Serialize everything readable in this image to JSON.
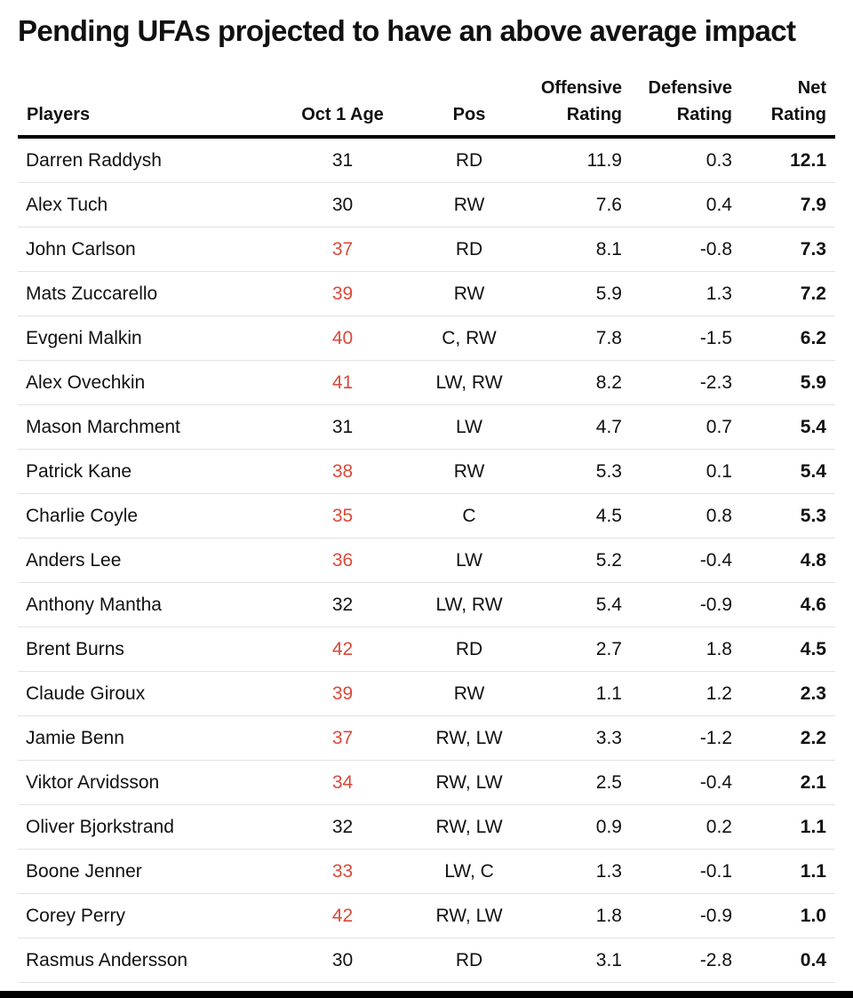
{
  "title": "Pending UFAs projected to have an above average impact",
  "headers": {
    "players": "Players",
    "age": "Oct 1 Age",
    "pos": "Pos",
    "off_line1": "Offensive",
    "off_line2": "Rating",
    "def_line1": "Defensive",
    "def_line2": "Rating",
    "net_line1": "Net",
    "net_line2": "Rating"
  },
  "age_highlight_color": "#d94a3a",
  "rows": [
    {
      "player": "Darren Raddysh",
      "age": "31",
      "pos": "RD",
      "off": "11.9",
      "def": "0.3",
      "net": "12.1",
      "age_highlight": false
    },
    {
      "player": "Alex Tuch",
      "age": "30",
      "pos": "RW",
      "off": "7.6",
      "def": "0.4",
      "net": "7.9",
      "age_highlight": false
    },
    {
      "player": "John Carlson",
      "age": "37",
      "pos": "RD",
      "off": "8.1",
      "def": "-0.8",
      "net": "7.3",
      "age_highlight": true
    },
    {
      "player": "Mats Zuccarello",
      "age": "39",
      "pos": "RW",
      "off": "5.9",
      "def": "1.3",
      "net": "7.2",
      "age_highlight": true
    },
    {
      "player": "Evgeni Malkin",
      "age": "40",
      "pos": "C, RW",
      "off": "7.8",
      "def": "-1.5",
      "net": "6.2",
      "age_highlight": true
    },
    {
      "player": "Alex Ovechkin",
      "age": "41",
      "pos": "LW, RW",
      "off": "8.2",
      "def": "-2.3",
      "net": "5.9",
      "age_highlight": true
    },
    {
      "player": "Mason Marchment",
      "age": "31",
      "pos": "LW",
      "off": "4.7",
      "def": "0.7",
      "net": "5.4",
      "age_highlight": false
    },
    {
      "player": "Patrick Kane",
      "age": "38",
      "pos": "RW",
      "off": "5.3",
      "def": "0.1",
      "net": "5.4",
      "age_highlight": true
    },
    {
      "player": "Charlie Coyle",
      "age": "35",
      "pos": "C",
      "off": "4.5",
      "def": "0.8",
      "net": "5.3",
      "age_highlight": true
    },
    {
      "player": "Anders Lee",
      "age": "36",
      "pos": "LW",
      "off": "5.2",
      "def": "-0.4",
      "net": "4.8",
      "age_highlight": true
    },
    {
      "player": "Anthony Mantha",
      "age": "32",
      "pos": "LW, RW",
      "off": "5.4",
      "def": "-0.9",
      "net": "4.6",
      "age_highlight": false
    },
    {
      "player": "Brent Burns",
      "age": "42",
      "pos": "RD",
      "off": "2.7",
      "def": "1.8",
      "net": "4.5",
      "age_highlight": true
    },
    {
      "player": "Claude Giroux",
      "age": "39",
      "pos": "RW",
      "off": "1.1",
      "def": "1.2",
      "net": "2.3",
      "age_highlight": true
    },
    {
      "player": "Jamie Benn",
      "age": "37",
      "pos": "RW, LW",
      "off": "3.3",
      "def": "-1.2",
      "net": "2.2",
      "age_highlight": true
    },
    {
      "player": "Viktor Arvidsson",
      "age": "34",
      "pos": "RW, LW",
      "off": "2.5",
      "def": "-0.4",
      "net": "2.1",
      "age_highlight": true
    },
    {
      "player": "Oliver Bjorkstrand",
      "age": "32",
      "pos": "RW, LW",
      "off": "0.9",
      "def": "0.2",
      "net": "1.1",
      "age_highlight": false
    },
    {
      "player": "Boone Jenner",
      "age": "33",
      "pos": "LW, C",
      "off": "1.3",
      "def": "-0.1",
      "net": "1.1",
      "age_highlight": true
    },
    {
      "player": "Corey Perry",
      "age": "42",
      "pos": "RW, LW",
      "off": "1.8",
      "def": "-0.9",
      "net": "1.0",
      "age_highlight": true
    },
    {
      "player": "Rasmus Andersson",
      "age": "30",
      "pos": "RD",
      "off": "3.1",
      "def": "-2.8",
      "net": "0.4",
      "age_highlight": false
    }
  ]
}
